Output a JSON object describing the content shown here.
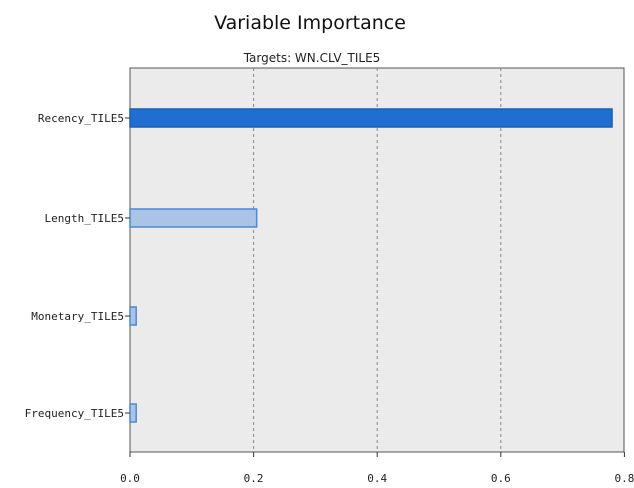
{
  "chart_data": {
    "type": "bar",
    "orientation": "horizontal",
    "title": "Variable Importance",
    "subtitle": "Targets: WN.CLV_TILE5",
    "categories": [
      "Recency_TILE5",
      "Length_TILE5",
      "Monetary_TILE5",
      "Frequency_TILE5"
    ],
    "values": [
      0.78,
      0.205,
      0.01,
      0.01
    ],
    "bar_styles": [
      "dark",
      "light",
      "light",
      "light"
    ],
    "xlim": [
      0,
      0.8
    ],
    "xticks": [
      "0.0",
      "0.2",
      "0.4",
      "0.6",
      "0.8"
    ],
    "grid": "vertical dashed",
    "colors": {
      "dark_fill": "#1f6fd0",
      "dark_stroke": "#1a5fb4",
      "light_fill": "#a9c4e4",
      "light_stroke": "#4a8ad8",
      "plot_bg": "#ebebeb",
      "grid": "#888888"
    }
  }
}
